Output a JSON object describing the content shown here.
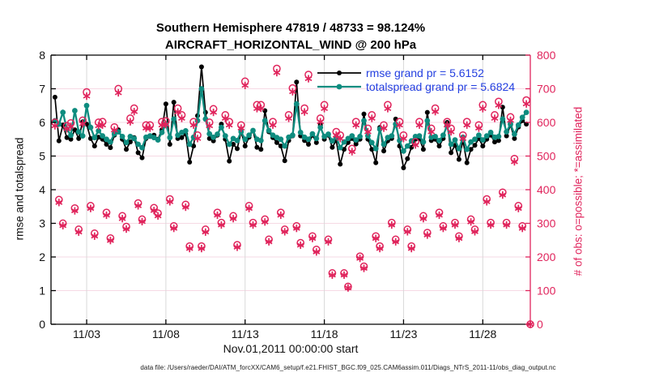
{
  "title": {
    "line1": "Southern Hemisphere 47819 / 48733 = 98.124%",
    "line2": "AIRCRAFT_HORIZONTAL_WIND @ 200 hPa"
  },
  "axis_labels": {
    "left": "rmse and totalspread",
    "right": "# of obs: o=possible; *=assimilated",
    "x": "Nov.01,2011 00:00:00 start"
  },
  "footer": "data file: /Users/raeder/DAI/ATM_forcXX/CAM6_setup/f.e21.FHIST_BGC.f09_025.CAM6assim.011/Diags_NTrS_2011-11/obs_diag_output.nc",
  "legend": {
    "text_color": "#2440e0",
    "entries": [
      {
        "label": "rmse grand pr = 5.6152",
        "color": "#000000"
      },
      {
        "label": "totalspread grand pr = 5.6824",
        "color": "#0e8c7f"
      }
    ]
  },
  "colors": {
    "rmse": "#000000",
    "totalspread": "#0e8c7f",
    "obs": "#e0245c",
    "grid_h": "#f6d9e4",
    "grid_v": "#d9d9d9",
    "axis_left": "#000000",
    "axis_right": "#e0245c"
  },
  "chart_data": {
    "type": "line",
    "title": "Southern Hemisphere 47819 / 48733 = 98.124% — AIRCRAFT_HORIZONTAL_WIND @ 200 hPa",
    "xlabel": "Nov.01,2011 00:00:00 start",
    "ylabel_left": "rmse and totalspread",
    "ylabel_right": "# of obs: o=possible; *=assimilated",
    "grid": true,
    "legend_position": "top-right-inside",
    "xlim_days_from_nov1": [
      -0.25,
      30.0
    ],
    "ylim_left": [
      0,
      8
    ],
    "ylim_right": [
      0,
      800
    ],
    "xticks": {
      "days": [
        2,
        7,
        12,
        17,
        22,
        27
      ],
      "labels": [
        "11/03",
        "11/08",
        "11/13",
        "11/18",
        "11/23",
        "11/28"
      ]
    },
    "yticks_left": [
      0,
      1,
      2,
      3,
      4,
      5,
      6,
      7,
      8
    ],
    "yticks_right": [
      0,
      100,
      200,
      300,
      400,
      500,
      600,
      700,
      800
    ],
    "grand_means": {
      "rmse": 5.6152,
      "totalspread": 5.6824
    },
    "x_days": {
      "start": 0,
      "step": 0.25,
      "count": 121
    },
    "series": [
      {
        "name": "rmse",
        "axis": "left",
        "marker": "dot",
        "color": "#000000",
        "values": [
          6.75,
          5.45,
          5.92,
          5.55,
          5.5,
          5.78,
          5.52,
          6.02,
          5.95,
          5.52,
          5.3,
          5.56,
          5.5,
          5.35,
          5.25,
          5.62,
          5.78,
          5.5,
          5.2,
          5.42,
          5.55,
          5.1,
          4.95,
          5.52,
          5.58,
          5.62,
          5.5,
          5.78,
          6.55,
          5.35,
          6.6,
          5.52,
          5.55,
          5.65,
          4.82,
          5.3,
          6.2,
          7.65,
          6.3,
          5.52,
          5.45,
          5.62,
          5.95,
          5.5,
          4.85,
          5.35,
          5.22,
          5.72,
          5.3,
          5.56,
          5.76,
          5.26,
          5.2,
          6.35,
          5.72,
          5.55,
          5.4,
          5.3,
          4.86,
          5.46,
          5.6,
          7.2,
          5.6,
          5.46,
          5.35,
          5.62,
          5.4,
          5.92,
          5.5,
          5.62,
          5.26,
          5.46,
          4.76,
          5.2,
          5.4,
          5.52,
          5.36,
          5.5,
          6.25,
          5.5,
          5.2,
          4.8,
          5.85,
          5.15,
          5.45,
          5.52,
          6.1,
          5.3,
          4.65,
          4.92,
          5.26,
          5.5,
          5.52,
          5.2,
          6.3,
          5.46,
          5.5,
          5.3,
          5.52,
          6.0,
          5.1,
          5.32,
          4.9,
          5.46,
          4.8,
          5.2,
          5.32,
          5.52,
          5.3,
          5.5,
          5.62,
          5.42,
          5.46,
          6.45,
          5.6,
          5.92,
          5.52,
          5.86,
          6.05,
          5.95,
          null
        ]
      },
      {
        "name": "totalspread",
        "axis": "left",
        "marker": "dot",
        "color": "#0e8c7f",
        "values": [
          6.05,
          5.95,
          6.3,
          5.8,
          5.62,
          6.35,
          5.72,
          5.6,
          6.5,
          5.85,
          5.55,
          5.75,
          5.6,
          5.5,
          5.42,
          5.66,
          5.72,
          5.58,
          5.4,
          5.58,
          5.52,
          5.35,
          5.25,
          5.56,
          5.6,
          5.55,
          5.48,
          5.7,
          5.95,
          5.55,
          6.1,
          5.62,
          5.7,
          5.75,
          5.35,
          5.56,
          6.05,
          7.0,
          6.1,
          5.66,
          5.56,
          5.65,
          5.85,
          5.6,
          5.35,
          5.52,
          5.46,
          5.72,
          5.5,
          5.62,
          5.76,
          5.5,
          5.46,
          6.05,
          5.76,
          5.62,
          5.55,
          5.5,
          5.3,
          5.56,
          5.62,
          6.55,
          5.7,
          5.56,
          5.5,
          5.66,
          5.52,
          5.85,
          5.58,
          5.65,
          5.45,
          5.56,
          5.25,
          5.42,
          5.52,
          5.6,
          5.48,
          5.58,
          6.05,
          5.6,
          5.4,
          5.22,
          5.8,
          5.35,
          5.55,
          5.6,
          5.95,
          5.46,
          5.15,
          5.3,
          5.45,
          5.58,
          5.6,
          5.42,
          6.05,
          5.56,
          5.58,
          5.46,
          5.62,
          5.9,
          5.35,
          5.48,
          5.22,
          5.56,
          5.2,
          5.42,
          5.5,
          5.62,
          5.48,
          5.6,
          5.7,
          5.56,
          5.58,
          6.1,
          5.72,
          5.95,
          5.65,
          5.92,
          6.15,
          6.3,
          null
        ]
      },
      {
        "name": "obs possible",
        "axis": "right",
        "marker": "circle",
        "color": "#e0245c",
        "values": [
          600,
          370,
          300,
          590,
          598,
          345,
          282,
          606,
          690,
          352,
          270,
          600,
          602,
          332,
          256,
          586,
          700,
          322,
          290,
          612,
          642,
          360,
          312,
          592,
          592,
          346,
          330,
          602,
          604,
          372,
          292,
          642,
          622,
          356,
          232,
          602,
          562,
          232,
          282,
          600,
          640,
          332,
          302,
          622,
          602,
          322,
          236,
          592,
          722,
          352,
          302,
          652,
          652,
          312,
          252,
          602,
          760,
          332,
          282,
          622,
          702,
          292,
          242,
          642,
          742,
          262,
          222,
          612,
          652,
          252,
          152,
          572,
          562,
          152,
          112,
          522,
          602,
          202,
          172,
          582,
          622,
          262,
          232,
          592,
          652,
          302,
          252,
          602,
          562,
          282,
          232,
          542,
          602,
          322,
          272,
          582,
          642,
          332,
          292,
          602,
          582,
          302,
          262,
          562,
          602,
          312,
          282,
          592,
          652,
          372,
          302,
          622,
          662,
          392,
          302,
          616,
          492,
          352,
          292,
          666,
          0
        ]
      },
      {
        "name": "obs assimilated",
        "axis": "right",
        "marker": "asterisk",
        "color": "#e0245c",
        "values": [
          590,
          362,
          293,
          581,
          588,
          337,
          274,
          596,
          678,
          344,
          262,
          590,
          592,
          324,
          249,
          577,
          688,
          314,
          283,
          602,
          632,
          352,
          305,
          583,
          583,
          338,
          322,
          592,
          594,
          364,
          285,
          631,
          612,
          348,
          225,
          592,
          552,
          225,
          274,
          590,
          630,
          324,
          295,
          612,
          592,
          314,
          229,
          583,
          710,
          344,
          295,
          641,
          642,
          304,
          245,
          592,
          748,
          324,
          275,
          612,
          691,
          285,
          235,
          631,
          730,
          255,
          215,
          602,
          641,
          245,
          146,
          562,
          552,
          146,
          108,
          513,
          592,
          196,
          166,
          572,
          612,
          255,
          225,
          583,
          641,
          295,
          245,
          592,
          552,
          275,
          225,
          533,
          592,
          314,
          265,
          572,
          632,
          324,
          285,
          592,
          572,
          295,
          255,
          552,
          592,
          304,
          275,
          583,
          641,
          364,
          295,
          612,
          651,
          384,
          295,
          606,
          483,
          344,
          285,
          655,
          0
        ]
      }
    ]
  }
}
